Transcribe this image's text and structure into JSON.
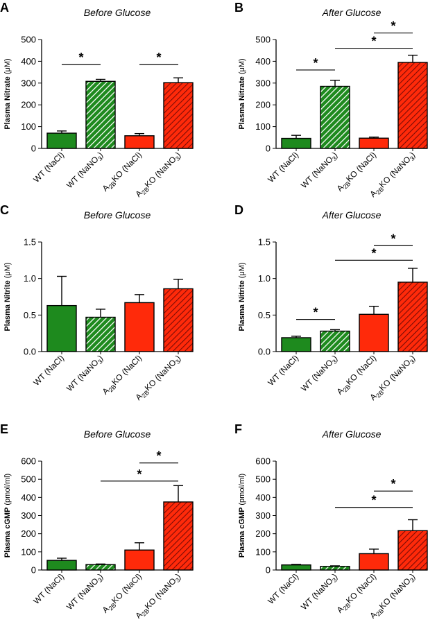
{
  "colors": {
    "wt": "#1e8a1e",
    "ko": "#ff2a0a",
    "ko_dark": "#cf1a10",
    "hatch_line": "#ffffff",
    "axis": "#000000"
  },
  "chart_data": [
    {
      "panel": "A",
      "type": "bar",
      "title": "Before Glucose",
      "ylabel_bold": "Plasma Nitrate",
      "ylabel_unit": "(μM)",
      "ylim": [
        0,
        500
      ],
      "yticks": [
        "0",
        "100",
        "200",
        "300",
        "400",
        "500"
      ],
      "categories": [
        {
          "pre": "WT (NaCl)",
          "sub": "",
          "post": "",
          "sub2": "",
          "end": ""
        },
        {
          "pre": "WT (NaNO",
          "sub": "3",
          "post": ")",
          "sub2": "",
          "end": ""
        },
        {
          "pre": "A",
          "sub": "2B",
          "post": "KO (NaCl)",
          "sub2": "",
          "end": ""
        },
        {
          "pre": "A",
          "sub": "2B",
          "post": "KO (NaNO",
          "sub2": "3",
          "end": ")"
        }
      ],
      "values": [
        70,
        308,
        58,
        302
      ],
      "errors": [
        10,
        9,
        10,
        22
      ],
      "significance": [
        {
          "from": 0,
          "to": 1,
          "y": 385,
          "label": "*"
        },
        {
          "from": 2,
          "to": 3,
          "y": 385,
          "label": "*"
        }
      ]
    },
    {
      "panel": "B",
      "type": "bar",
      "title": "After Glucose",
      "ylabel_bold": "Plasma Nitrate",
      "ylabel_unit": "(μM)",
      "ylim": [
        0,
        500
      ],
      "yticks": [
        "0",
        "100",
        "200",
        "300",
        "400",
        "500"
      ],
      "categories": [
        {
          "pre": "WT (NaCl)",
          "sub": "",
          "post": "",
          "sub2": "",
          "end": ""
        },
        {
          "pre": "WT (NaNO",
          "sub": "3",
          "post": ")",
          "sub2": "",
          "end": ""
        },
        {
          "pre": "A",
          "sub": "2B",
          "post": "KO (NaCl)",
          "sub2": "",
          "end": ""
        },
        {
          "pre": "A",
          "sub": "2B",
          "post": "KO (NaNO",
          "sub2": "3",
          "end": ")"
        }
      ],
      "values": [
        46,
        285,
        47,
        395
      ],
      "errors": [
        14,
        28,
        5,
        33
      ],
      "significance": [
        {
          "from": 0,
          "to": 1,
          "y": 360,
          "label": "*"
        },
        {
          "from": 1,
          "to": 3,
          "y": 460,
          "label": "*"
        },
        {
          "from": 2,
          "to": 3,
          "y": 530,
          "label": "*"
        }
      ]
    },
    {
      "panel": "C",
      "type": "bar",
      "title": "Before Glucose",
      "ylabel_bold": "Plasma Nitrite",
      "ylabel_unit": "(μM)",
      "ylim": [
        0,
        1.5
      ],
      "yticks": [
        "0.0",
        "0.5",
        "1.0",
        "1.5"
      ],
      "categories": [
        {
          "pre": "WT (NaCl)",
          "sub": "",
          "post": "",
          "sub2": "",
          "end": ""
        },
        {
          "pre": "WT (NaNO",
          "sub": "3",
          "post": ")",
          "sub2": "",
          "end": ""
        },
        {
          "pre": "A",
          "sub": "2B",
          "post": "KO (NaCl)",
          "sub2": "",
          "end": ""
        },
        {
          "pre": "A",
          "sub": "2B",
          "post": "KO (NaNO",
          "sub2": "3",
          "end": ")"
        }
      ],
      "values": [
        0.63,
        0.47,
        0.67,
        0.86
      ],
      "errors": [
        0.4,
        0.11,
        0.11,
        0.13
      ],
      "significance": []
    },
    {
      "panel": "D",
      "type": "bar",
      "title": "After Glucose",
      "ylabel_bold": "Plasma Nitrite",
      "ylabel_unit": "(μM)",
      "ylim": [
        0,
        1.5
      ],
      "yticks": [
        "0.0",
        "0.5",
        "1.0",
        "1.5"
      ],
      "categories": [
        {
          "pre": "WT (NaCl)",
          "sub": "",
          "post": "",
          "sub2": "",
          "end": ""
        },
        {
          "pre": "WT (NaNO",
          "sub": "3",
          "post": ")",
          "sub2": "",
          "end": ""
        },
        {
          "pre": "A",
          "sub": "2B",
          "post": "KO (NaCl)",
          "sub2": "",
          "end": ""
        },
        {
          "pre": "A",
          "sub": "2B",
          "post": "KO (NaNO",
          "sub2": "3",
          "end": ")"
        }
      ],
      "values": [
        0.19,
        0.28,
        0.51,
        0.95
      ],
      "errors": [
        0.02,
        0.02,
        0.11,
        0.19
      ],
      "significance": [
        {
          "from": 0,
          "to": 1,
          "y": 0.44,
          "label": "*"
        },
        {
          "from": 1,
          "to": 3,
          "y": 1.25,
          "label": "*"
        },
        {
          "from": 2,
          "to": 3,
          "y": 1.45,
          "label": "*"
        }
      ]
    },
    {
      "panel": "E",
      "type": "bar",
      "title": "Before Glucose",
      "ylabel_bold": "Plasma cGMP",
      "ylabel_unit": "(pmol/ml)",
      "ylim": [
        0,
        600
      ],
      "yticks": [
        "0",
        "100",
        "200",
        "300",
        "400",
        "500",
        "600"
      ],
      "categories": [
        {
          "pre": "WT (NaCl)",
          "sub": "",
          "post": "",
          "sub2": "",
          "end": ""
        },
        {
          "pre": "WT (NaNO",
          "sub": "3",
          "post": ")",
          "sub2": "",
          "end": ""
        },
        {
          "pre": "A",
          "sub": "2B",
          "post": "KO (NaCl)",
          "sub2": "",
          "end": ""
        },
        {
          "pre": "A",
          "sub": "2B",
          "post": "KO (NaNO",
          "sub2": "3",
          "end": ")"
        }
      ],
      "values": [
        53,
        30,
        110,
        375
      ],
      "errors": [
        12,
        3,
        40,
        90
      ],
      "significance": [
        {
          "from": 1,
          "to": 3,
          "y": 490,
          "label": "*"
        },
        {
          "from": 2,
          "to": 3,
          "y": 590,
          "label": "*"
        }
      ]
    },
    {
      "panel": "F",
      "type": "bar",
      "title": "After Glucose",
      "ylabel_bold": "Plasma cGMP",
      "ylabel_unit": "(pmol/ml)",
      "ylim": [
        0,
        600
      ],
      "yticks": [
        "0",
        "100",
        "200",
        "300",
        "400",
        "500",
        "600"
      ],
      "categories": [
        {
          "pre": "WT (NaCl)",
          "sub": "",
          "post": "",
          "sub2": "",
          "end": ""
        },
        {
          "pre": "WT (NaNO",
          "sub": "3",
          "post": ")",
          "sub2": "",
          "end": ""
        },
        {
          "pre": "A",
          "sub": "2B",
          "post": "KO (NaCl)",
          "sub2": "",
          "end": ""
        },
        {
          "pre": "A",
          "sub": "2B",
          "post": "KO (NaNO",
          "sub2": "3",
          "end": ")"
        }
      ],
      "values": [
        28,
        20,
        90,
        217
      ],
      "errors": [
        3,
        3,
        25,
        60
      ],
      "significance": [
        {
          "from": 1,
          "to": 3,
          "y": 345,
          "label": "*"
        },
        {
          "from": 2,
          "to": 3,
          "y": 435,
          "label": "*"
        }
      ]
    }
  ]
}
